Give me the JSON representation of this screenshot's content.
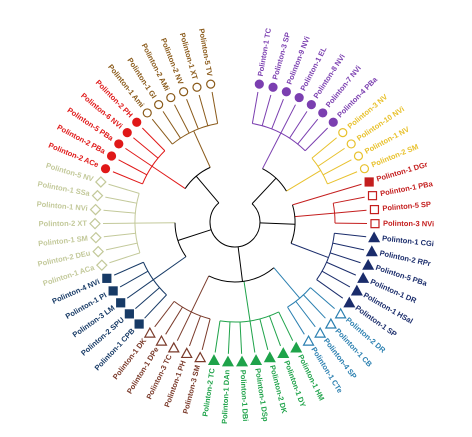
{
  "tree": {
    "groups": [
      {
        "color": "#7b3fb0",
        "marker": "circle",
        "filled": true,
        "leaves": [
          "Polinton-1 TC",
          "Polinton-3 SP",
          "Polinton-9 NVi",
          "Polinton-1 EL",
          "Polinton-8 NVi",
          "Polinton-7 NVi",
          "Polinton-4 PBa"
        ]
      },
      {
        "color": "#e8c12c",
        "marker": "circle",
        "filled": false,
        "leaves": [
          "Polinton-3 NV",
          "Polinton-10 NVi",
          "Polinton-1 NV",
          "Polinton-2 SM"
        ]
      },
      {
        "color": "#c41e1e",
        "marker": "square",
        "filled": true,
        "leaves": [
          "Polinton-1 DGr"
        ]
      },
      {
        "color": "#c41e1e",
        "marker": "square",
        "filled": false,
        "leaves": [
          "Polinton-1 PBa",
          "Polinton-5 SP",
          "Polinton-3 NVi"
        ]
      },
      {
        "color": "#1a2c6b",
        "marker": "triangle",
        "filled": true,
        "leaves": [
          "Polinton-1 CGi",
          "Polinton-2 RPr",
          "Polinton-5 PBa",
          "Polinton-1 DR",
          "Polinton-1 HSal",
          "Polinton-1 SP"
        ]
      },
      {
        "color": "#2a7fb0",
        "marker": "triangle",
        "filled": false,
        "leaves": [
          "Polinton-2 DR",
          "Polinton-1 CB",
          "Polinton-4 SP",
          "Polinton-1 CTe"
        ]
      },
      {
        "color": "#1fa34a",
        "marker": "triangle",
        "filled": true,
        "leaves": [
          "Polinton-1 HM",
          "Polinton-1 DY",
          "Polinton-2 DK",
          "Polinton-1 DSp",
          "Polinton-1 DBi",
          "Polinton-1 DAn",
          "Polinton-2 TC"
        ]
      },
      {
        "color": "#7a3a2a",
        "marker": "triangle",
        "filled": false,
        "leaves": [
          "Polinton-3 SM",
          "Polinton-1 PH",
          "Polinton-3 TC",
          "Polinton-1 DPe",
          "Polinton-1 DK"
        ]
      },
      {
        "color": "#173a66",
        "marker": "square",
        "filled": true,
        "leaves": [
          "Polinton-1 CPB",
          "Polinton-2 SPU",
          "Polinton-3 LM",
          "Polinton-1 PI",
          "Polinton-4 NVi"
        ]
      },
      {
        "color": "#c3c99a",
        "marker": "diamond",
        "filled": false,
        "leaves": [
          "Polinton-1 ACa",
          "Polinton-2 DEu",
          "Polinton-1 SM",
          "Polinton-2 XT",
          "Polinton-1 NVi",
          "Polinton-1 SSa",
          "Polinton-5 NV"
        ]
      },
      {
        "color": "#e01818",
        "marker": "circle",
        "filled": true,
        "leaves": [
          "Polinton-2 ACe",
          "Polinton-2 PBa",
          "Polinton-5 PBa",
          "Polinton-6 NVi",
          "Polinton-2 PH"
        ]
      },
      {
        "color": "#8a5a1a",
        "marker": "circle",
        "filled": false,
        "leaves": [
          "Polinton-1 Ami",
          "Polinton-1 GI",
          "Polinton-2 AMi",
          "Polinton-2 NV",
          "Polinton-1 XT",
          "Polinton-5 TV"
        ]
      }
    ]
  }
}
